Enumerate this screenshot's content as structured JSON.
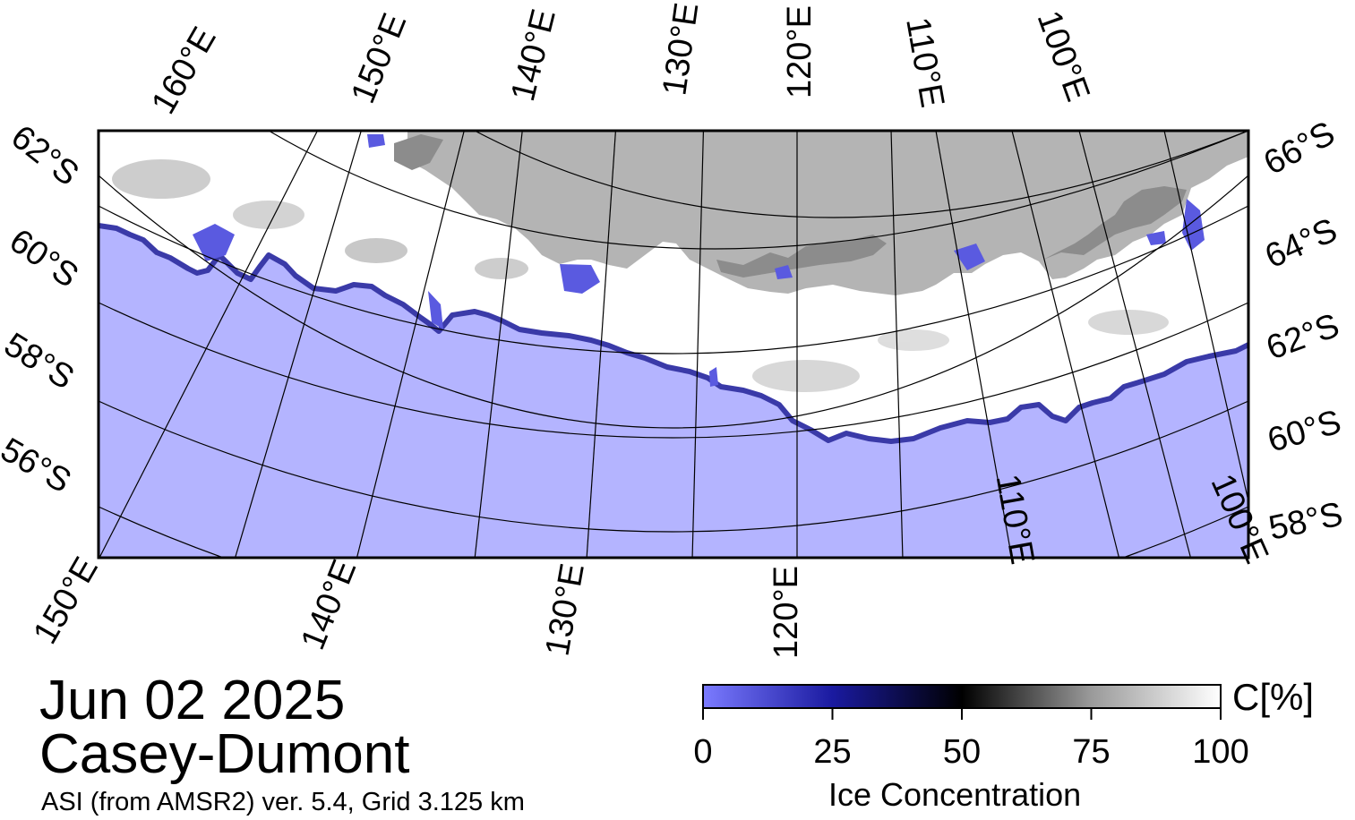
{
  "title": {
    "date": "Jun 02 2025",
    "region": "Casey-Dumont",
    "product": "ASI (from AMSR2) ver. 5.4,  Grid 3.125 km"
  },
  "colorbar": {
    "unit": "C[%]",
    "title": "Ice Concentration",
    "ticks": [
      "0",
      "25",
      "50",
      "75",
      "100"
    ],
    "stops": [
      {
        "value": 0,
        "color": "#7b7bff"
      },
      {
        "value": 25,
        "color": "#1a1aa0"
      },
      {
        "value": 50,
        "color": "#000000"
      },
      {
        "value": 75,
        "color": "#9a9a9a"
      },
      {
        "value": 100,
        "color": "#ffffff"
      }
    ]
  },
  "map": {
    "ocean_color": "#b4b4ff",
    "land_color": "#b4b4b4",
    "ice_shelf_color": "#8c8c8c",
    "ice_color": "#ffffff",
    "top_lon_labels": [
      "160°E",
      "150°E",
      "140°E",
      "130°E",
      "120°E",
      "110°E",
      "100°E"
    ],
    "bottom_lon_labels": [
      "150°E",
      "140°E",
      "130°E",
      "120°E",
      "110°E",
      "100°E"
    ],
    "left_lat_labels": [
      "62°S",
      "60°S",
      "58°S",
      "56°S"
    ],
    "right_lat_labels": [
      "66°S",
      "64°S",
      "62°S",
      "60°S",
      "58°S"
    ]
  }
}
